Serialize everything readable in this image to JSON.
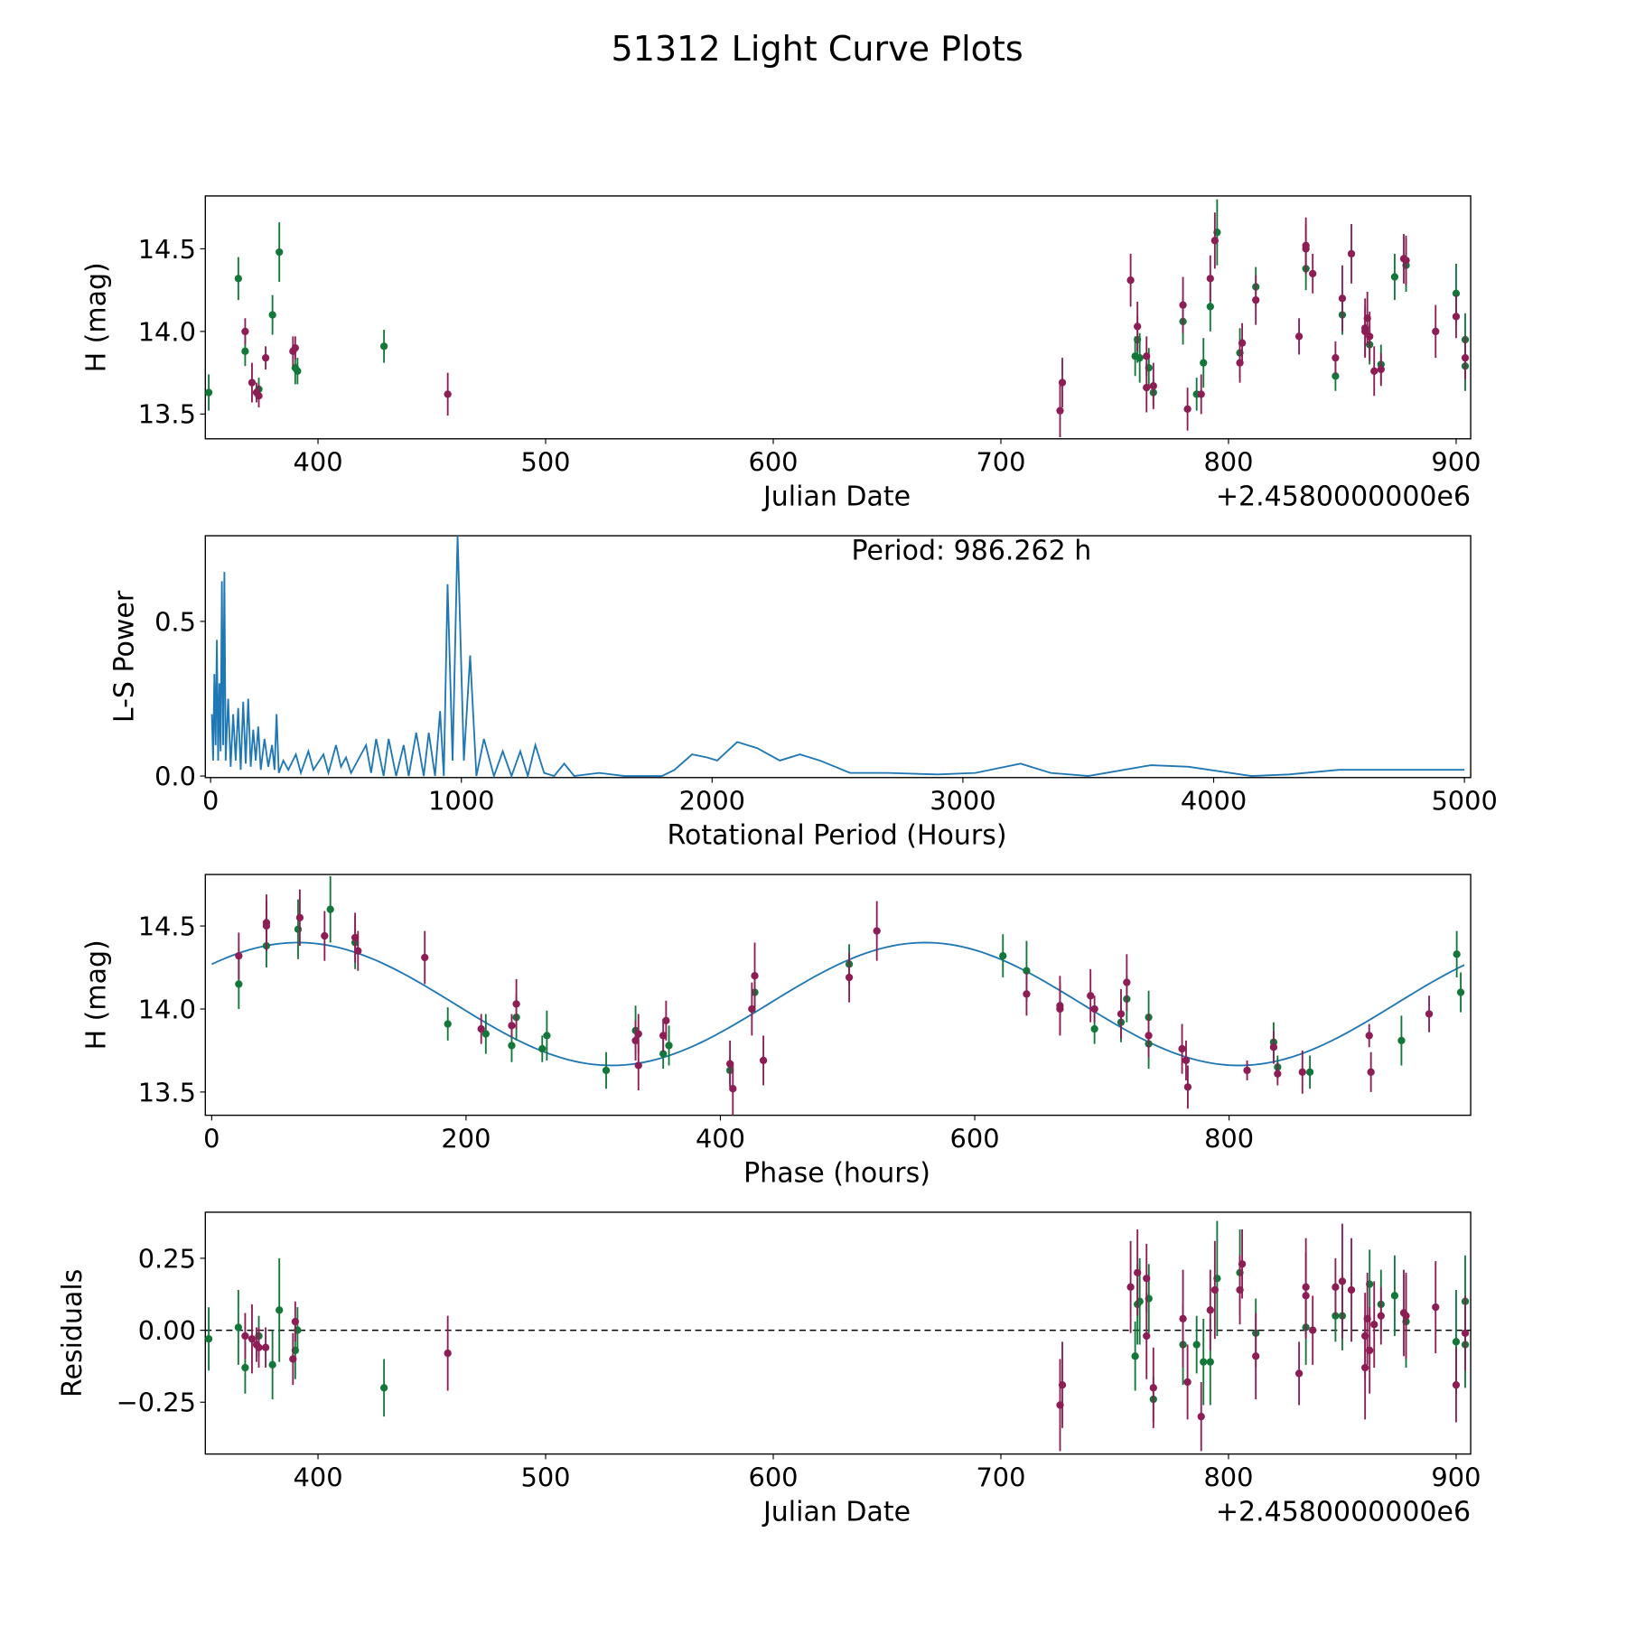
{
  "title": "51312 Light Curve Plots",
  "colors": {
    "filter_a": "#13773a",
    "filter_b": "#8c1d55",
    "periodogram": "#1f77b4",
    "model": "#1f77b4"
  },
  "chart_data": [
    {
      "type": "scatter",
      "id": "lightcurve",
      "xlabel": "Julian Date",
      "x_offset_label": "+2.4580000000e6",
      "ylabel": "H (mag)",
      "xlim": [
        350.5,
        906.4
      ],
      "ylim": [
        13.35,
        14.82
      ],
      "xticks": [
        400,
        500,
        600,
        700,
        800,
        900
      ],
      "xtick_labels": [
        "400",
        "500",
        "600",
        "700",
        "800",
        "900"
      ],
      "yticks": [
        13.5,
        14.0,
        14.5
      ],
      "ytick_labels": [
        "13.5",
        "14.0",
        "14.5"
      ],
      "series": [
        {
          "name": "filter_a",
          "color": "#13773a",
          "points": [
            [
              352,
              13.63,
              0.11
            ],
            [
              365,
              14.32,
              0.13
            ],
            [
              368,
              13.88,
              0.09
            ],
            [
              374,
              13.65,
              0.07
            ],
            [
              380,
              14.1,
              0.12
            ],
            [
              383,
              14.48,
              0.18
            ],
            [
              390,
              13.78,
              0.1
            ],
            [
              391,
              13.76,
              0.08
            ],
            [
              429,
              13.91,
              0.1
            ],
            [
              759,
              13.85,
              0.12
            ],
            [
              760,
              13.95,
              0.14
            ],
            [
              761,
              13.84,
              0.15
            ],
            [
              765,
              13.78,
              0.12
            ],
            [
              767,
              13.63,
              0.08
            ],
            [
              780,
              14.06,
              0.14
            ],
            [
              786,
              13.62,
              0.1
            ],
            [
              789,
              13.81,
              0.15
            ],
            [
              792,
              14.15,
              0.15
            ],
            [
              795,
              14.6,
              0.2
            ],
            [
              805,
              13.87,
              0.15
            ],
            [
              812,
              14.27,
              0.12
            ],
            [
              834,
              14.38,
              0.13
            ],
            [
              847,
              13.73,
              0.09
            ],
            [
              850,
              14.1,
              0.12
            ],
            [
              862,
              13.92,
              0.12
            ],
            [
              867,
              13.8,
              0.12
            ],
            [
              873,
              14.33,
              0.14
            ],
            [
              878,
              14.4,
              0.16
            ],
            [
              900,
              14.23,
              0.18
            ],
            [
              904,
              13.95,
              0.16
            ],
            [
              904,
              13.79,
              0.15
            ]
          ]
        },
        {
          "name": "filter_b",
          "color": "#8c1d55",
          "points": [
            [
              368,
              14.0,
              0.08
            ],
            [
              371,
              13.69,
              0.12
            ],
            [
              373,
              13.63,
              0.06
            ],
            [
              374,
              13.61,
              0.07
            ],
            [
              377,
              13.84,
              0.07
            ],
            [
              389,
              13.88,
              0.09
            ],
            [
              390,
              13.9,
              0.07
            ],
            [
              457,
              13.62,
              0.13
            ],
            [
              726,
              13.52,
              0.16
            ],
            [
              727,
              13.69,
              0.15
            ],
            [
              757,
              14.31,
              0.16
            ],
            [
              760,
              14.03,
              0.15
            ],
            [
              764,
              13.85,
              0.12
            ],
            [
              764,
              13.66,
              0.15
            ],
            [
              767,
              13.67,
              0.14
            ],
            [
              780,
              14.16,
              0.17
            ],
            [
              782,
              13.53,
              0.13
            ],
            [
              788,
              13.62,
              0.12
            ],
            [
              792,
              14.32,
              0.14
            ],
            [
              794,
              14.55,
              0.17
            ],
            [
              805,
              13.81,
              0.12
            ],
            [
              806,
              13.93,
              0.12
            ],
            [
              812,
              14.19,
              0.15
            ],
            [
              831,
              13.97,
              0.11
            ],
            [
              834,
              14.52,
              0.17
            ],
            [
              834,
              14.5,
              0.15
            ],
            [
              837,
              14.35,
              0.12
            ],
            [
              847,
              13.84,
              0.1
            ],
            [
              850,
              14.2,
              0.2
            ],
            [
              854,
              14.47,
              0.18
            ],
            [
              860,
              14.02,
              0.18
            ],
            [
              860,
              14.0,
              0.15
            ],
            [
              861,
              14.08,
              0.16
            ],
            [
              862,
              13.97,
              0.15
            ],
            [
              864,
              13.76,
              0.15
            ],
            [
              867,
              13.77,
              0.1
            ],
            [
              877,
              14.44,
              0.15
            ],
            [
              878,
              14.43,
              0.15
            ],
            [
              891,
              14.0,
              0.16
            ],
            [
              900,
              14.09,
              0.13
            ],
            [
              904,
              13.84,
              0.13
            ]
          ]
        }
      ]
    },
    {
      "type": "line",
      "id": "periodogram",
      "xlabel": "Rotational Period (Hours)",
      "ylabel": "L-S Power",
      "annotation": "Period: 986.262 h",
      "xlim": [
        -21,
        5025
      ],
      "ylim": [
        -0.005,
        0.777
      ],
      "xticks": [
        0,
        1000,
        2000,
        3000,
        4000,
        5000
      ],
      "xtick_labels": [
        "0",
        "1000",
        "2000",
        "3000",
        "4000",
        "5000"
      ],
      "yticks": [
        0.0,
        0.5
      ],
      "ytick_labels": [
        "0.0",
        "0.5"
      ],
      "points": [
        [
          5,
          0.2
        ],
        [
          10,
          0.05
        ],
        [
          15,
          0.33
        ],
        [
          20,
          0.1
        ],
        [
          25,
          0.44
        ],
        [
          30,
          0.05
        ],
        [
          35,
          0.3
        ],
        [
          40,
          0.08
        ],
        [
          45,
          0.63
        ],
        [
          50,
          0.1
        ],
        [
          55,
          0.66
        ],
        [
          60,
          0.05
        ],
        [
          70,
          0.25
        ],
        [
          80,
          0.03
        ],
        [
          90,
          0.2
        ],
        [
          100,
          0.05
        ],
        [
          110,
          0.22
        ],
        [
          120,
          0.02
        ],
        [
          130,
          0.24
        ],
        [
          140,
          0.04
        ],
        [
          150,
          0.25
        ],
        [
          160,
          0.03
        ],
        [
          170,
          0.15
        ],
        [
          180,
          0.05
        ],
        [
          190,
          0.16
        ],
        [
          200,
          0.02
        ],
        [
          215,
          0.12
        ],
        [
          230,
          0.03
        ],
        [
          245,
          0.1
        ],
        [
          255,
          0.02
        ],
        [
          263,
          0.2
        ],
        [
          272,
          0.01
        ],
        [
          290,
          0.05
        ],
        [
          310,
          0.02
        ],
        [
          340,
          0.07
        ],
        [
          360,
          0.01
        ],
        [
          390,
          0.08
        ],
        [
          410,
          0.02
        ],
        [
          450,
          0.07
        ],
        [
          470,
          0.01
        ],
        [
          500,
          0.1
        ],
        [
          520,
          0.03
        ],
        [
          540,
          0.06
        ],
        [
          560,
          0.01
        ],
        [
          620,
          0.1
        ],
        [
          640,
          0.01
        ],
        [
          660,
          0.12
        ],
        [
          690,
          0.0
        ],
        [
          710,
          0.12
        ],
        [
          740,
          0.0
        ],
        [
          770,
          0.1
        ],
        [
          790,
          0.0
        ],
        [
          820,
          0.14
        ],
        [
          850,
          0.0
        ],
        [
          870,
          0.14
        ],
        [
          895,
          0.0
        ],
        [
          915,
          0.21
        ],
        [
          930,
          0.0
        ],
        [
          945,
          0.62
        ],
        [
          965,
          0.05
        ],
        [
          985,
          0.78
        ],
        [
          1010,
          0.05
        ],
        [
          1035,
          0.39
        ],
        [
          1060,
          0.0
        ],
        [
          1090,
          0.12
        ],
        [
          1130,
          0.0
        ],
        [
          1165,
          0.08
        ],
        [
          1200,
          0.0
        ],
        [
          1235,
          0.08
        ],
        [
          1265,
          0.0
        ],
        [
          1295,
          0.1
        ],
        [
          1330,
          0.01
        ],
        [
          1370,
          0.0
        ],
        [
          1410,
          0.04
        ],
        [
          1450,
          0.0
        ],
        [
          1550,
          0.01
        ],
        [
          1650,
          0.0
        ],
        [
          1800,
          0.0
        ],
        [
          1850,
          0.02
        ],
        [
          1920,
          0.07
        ],
        [
          1980,
          0.06
        ],
        [
          2020,
          0.05
        ],
        [
          2100,
          0.11
        ],
        [
          2180,
          0.09
        ],
        [
          2270,
          0.05
        ],
        [
          2350,
          0.07
        ],
        [
          2430,
          0.05
        ],
        [
          2550,
          0.01
        ],
        [
          2700,
          0.01
        ],
        [
          2900,
          0.005
        ],
        [
          3050,
          0.01
        ],
        [
          3230,
          0.04
        ],
        [
          3350,
          0.01
        ],
        [
          3500,
          0.0
        ],
        [
          3750,
          0.035
        ],
        [
          3900,
          0.03
        ],
        [
          4150,
          0.0
        ],
        [
          4300,
          0.005
        ],
        [
          4500,
          0.02
        ],
        [
          5000,
          0.02
        ]
      ]
    },
    {
      "type": "scatter",
      "id": "phased",
      "xlabel": "Phase (hours)",
      "ylabel": "H (mag)",
      "xlim": [
        -5,
        990
      ],
      "ylim": [
        13.36,
        14.81
      ],
      "xticks": [
        0,
        200,
        400,
        600,
        800
      ],
      "xtick_labels": [
        "0",
        "200",
        "400",
        "600",
        "800"
      ],
      "yticks": [
        13.5,
        14.0,
        14.5
      ],
      "ytick_labels": [
        "13.5",
        "14.0",
        "14.5"
      ],
      "fold_period_hours": 986.262,
      "fold_epoch": 380.17,
      "model": {
        "mean": 14.03,
        "amplitude": 0.37,
        "peak_phase": 68,
        "period": 493.131
      }
    },
    {
      "type": "scatter",
      "id": "residuals",
      "xlabel": "Julian Date",
      "x_offset_label": "+2.4580000000e6",
      "ylabel": "Residuals",
      "xlim": [
        350.5,
        906.4
      ],
      "ylim": [
        -0.43,
        0.41
      ],
      "xticks": [
        400,
        500,
        600,
        700,
        800,
        900
      ],
      "xtick_labels": [
        "400",
        "500",
        "600",
        "700",
        "800",
        "900"
      ],
      "yticks": [
        0.25,
        0.0,
        -0.25
      ],
      "ytick_labels": [
        "0.25",
        "0.00",
        "−0.25"
      ],
      "series": [
        {
          "name": "filter_a",
          "color": "#13773a",
          "residuals": [
            -0.03,
            0.01,
            -0.13,
            -0.02,
            -0.12,
            0.07,
            -0.07,
            0.0,
            -0.2,
            -0.09,
            0.09,
            0.1,
            0.11,
            -0.24,
            -0.05,
            -0.05,
            -0.11,
            -0.11,
            0.18,
            0.2,
            -0.01,
            0.01,
            0.05,
            0.05,
            0.16,
            0.09,
            0.12,
            0.03,
            -0.04,
            0.1,
            -0.05
          ]
        },
        {
          "name": "filter_b",
          "color": "#8c1d55",
          "residuals": [
            -0.02,
            -0.03,
            -0.05,
            -0.06,
            -0.06,
            -0.1,
            0.03,
            -0.08,
            -0.26,
            -0.19,
            0.15,
            0.2,
            0.18,
            -0.02,
            -0.2,
            0.04,
            -0.18,
            -0.3,
            0.07,
            0.14,
            0.14,
            0.23,
            -0.09,
            -0.15,
            0.15,
            0.12,
            0.0,
            0.15,
            0.17,
            0.14,
            -0.13,
            -0.02,
            0.04,
            -0.07,
            0.02,
            0.05,
            0.06,
            0.05,
            0.08,
            -0.19,
            -0.01
          ]
        }
      ]
    }
  ]
}
